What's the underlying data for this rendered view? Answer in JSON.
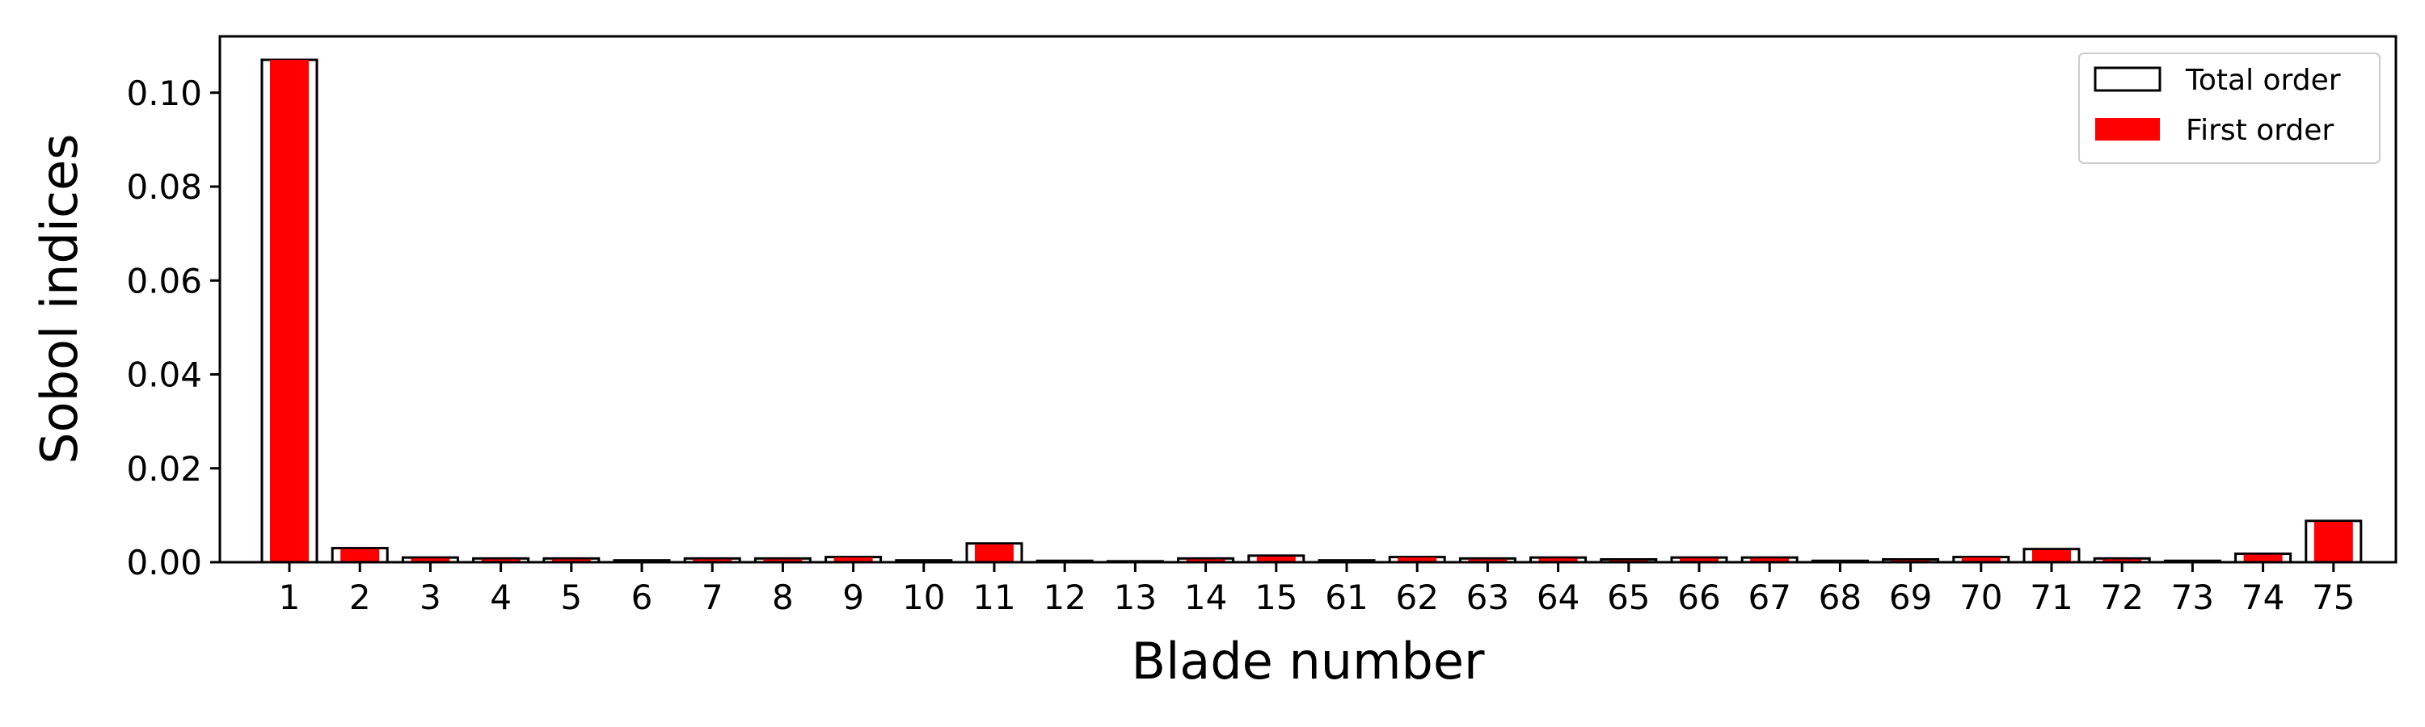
{
  "chart_data": {
    "type": "bar",
    "xlabel": "Blade number",
    "ylabel": "Sobol indices",
    "ylim": [
      0,
      0.112
    ],
    "yticks": [
      "0.00",
      "0.02",
      "0.04",
      "0.06",
      "0.08",
      "0.10"
    ],
    "categories": [
      "1",
      "2",
      "3",
      "4",
      "5",
      "6",
      "7",
      "8",
      "9",
      "10",
      "11",
      "12",
      "13",
      "14",
      "15",
      "61",
      "62",
      "63",
      "64",
      "65",
      "66",
      "67",
      "68",
      "69",
      "70",
      "71",
      "72",
      "73",
      "74",
      "75"
    ],
    "series": [
      {
        "name": "Total order",
        "style": "outline",
        "values": [
          0.107,
          0.003,
          0.001,
          0.0008,
          0.0008,
          0.0004,
          0.0008,
          0.0008,
          0.0011,
          0.0004,
          0.004,
          0.0003,
          0.0002,
          0.0008,
          0.0014,
          0.0004,
          0.0011,
          0.0008,
          0.001,
          0.0006,
          0.001,
          0.001,
          0.0003,
          0.0006,
          0.0011,
          0.0028,
          0.0008,
          0.0003,
          0.0018,
          0.0088
        ]
      },
      {
        "name": "First order",
        "style": "filled",
        "values": [
          0.107,
          0.0028,
          0.0008,
          0.0006,
          0.0006,
          0.0002,
          0.0006,
          0.0006,
          0.001,
          0.0002,
          0.0038,
          0.0001,
          0.0001,
          0.0006,
          0.0012,
          0.0002,
          0.001,
          0.0006,
          0.0008,
          0.0004,
          0.0008,
          0.0008,
          0.0002,
          0.0004,
          0.001,
          0.0026,
          0.0006,
          0.0002,
          0.0016,
          0.0086
        ]
      }
    ],
    "legend": "top-right",
    "grid": false,
    "colors": {
      "first_order": "#ff0000",
      "total_order_edge": "#000000",
      "total_order_fill": "#ffffff"
    }
  }
}
